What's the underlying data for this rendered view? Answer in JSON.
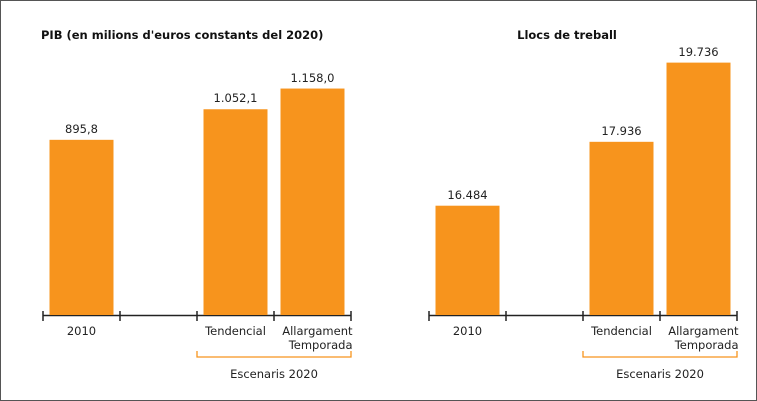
{
  "chart_data": [
    {
      "type": "bar",
      "title": "PIB (en milions d'euros constants del 2020)",
      "categories": [
        "2010",
        null,
        "Tendencial",
        "Allargament Temporada"
      ],
      "values": [
        895.8,
        null,
        1052.1,
        1158.0
      ],
      "value_labels": [
        "895,8",
        null,
        "1.052,1",
        "1.158,0"
      ],
      "color": "#f7941d",
      "ylim": [
        0,
        1350
      ],
      "annotation": "Escenaris 2020"
    },
    {
      "type": "bar",
      "title": "Llocs de treball",
      "categories": [
        "2010",
        null,
        "Tendencial",
        "Allargament Temporada"
      ],
      "values": [
        16484,
        null,
        17936,
        19736
      ],
      "value_labels": [
        "16.484",
        null,
        "17.936",
        "19.736"
      ],
      "color": "#f7941d",
      "ylim": [
        14000,
        20000
      ],
      "annotation": "Escenaris 2020"
    }
  ]
}
